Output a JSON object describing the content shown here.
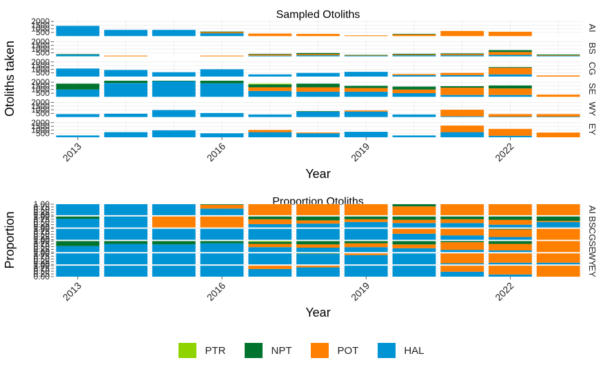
{
  "chart_data": [
    {
      "type": "bar",
      "stacked": true,
      "title": "Sampled Otoliths",
      "xlabel": "Year",
      "ylabel": "Otoliths taken",
      "x": [
        2013,
        2014,
        2015,
        2016,
        2017,
        2018,
        2019,
        2020,
        2021,
        2022,
        2023
      ],
      "x_ticks": [
        "2013",
        "2016",
        "2019",
        "2022"
      ],
      "y_ticks": [
        "500",
        "1000",
        "1500",
        "2000"
      ],
      "ylim": [
        0,
        2200
      ],
      "grid": true,
      "facets": [
        {
          "name": "AI",
          "series": [
            {
              "name": "HAL",
              "values": [
                1400,
                850,
                850,
                400,
                0,
                0,
                0,
                0,
                0,
                0,
                null
              ]
            },
            {
              "name": "POT",
              "values": [
                0,
                0,
                0,
                200,
                350,
                300,
                100,
                250,
                700,
                600,
                null
              ]
            },
            {
              "name": "NPT",
              "values": [
                0,
                0,
                0,
                20,
                0,
                0,
                0,
                50,
                0,
                0,
                null
              ]
            },
            {
              "name": "PTR",
              "values": [
                0,
                0,
                0,
                0,
                0,
                0,
                0,
                0,
                0,
                0,
                null
              ]
            }
          ]
        },
        {
          "name": "BS",
          "series": [
            {
              "name": "HAL",
              "values": [
                250,
                0,
                0,
                0,
                100,
                150,
                100,
                150,
                150,
                200,
                120
              ]
            },
            {
              "name": "POT",
              "values": [
                0,
                100,
                0,
                100,
                150,
                150,
                50,
                100,
                150,
                400,
                30
              ]
            },
            {
              "name": "NPT",
              "values": [
                50,
                0,
                0,
                0,
                80,
                150,
                50,
                100,
                100,
                250,
                100
              ]
            },
            {
              "name": "PTR",
              "values": [
                0,
                0,
                0,
                0,
                0,
                0,
                0,
                0,
                0,
                0,
                0
              ]
            }
          ]
        },
        {
          "name": "CG",
          "series": [
            {
              "name": "HAL",
              "values": [
                1100,
                900,
                600,
                1000,
                300,
                500,
                650,
                200,
                200,
                300,
                0
              ]
            },
            {
              "name": "POT",
              "values": [
                0,
                0,
                0,
                0,
                0,
                0,
                0,
                150,
                300,
                900,
                150
              ]
            },
            {
              "name": "NPT",
              "values": [
                0,
                0,
                0,
                0,
                0,
                0,
                0,
                0,
                0,
                100,
                0
              ]
            },
            {
              "name": "PTR",
              "values": [
                0,
                0,
                0,
                0,
                0,
                0,
                0,
                0,
                0,
                0,
                0
              ]
            }
          ]
        },
        {
          "name": "SE",
          "series": [
            {
              "name": "HAL",
              "values": [
                1000,
                1900,
                2150,
                1850,
                800,
                700,
                700,
                500,
                250,
                250,
                0
              ]
            },
            {
              "name": "POT",
              "values": [
                0,
                0,
                0,
                0,
                500,
                600,
                500,
                500,
                1000,
                900,
                300
              ]
            },
            {
              "name": "NPT",
              "values": [
                800,
                600,
                900,
                400,
                400,
                500,
                300,
                400,
                200,
                400,
                0
              ]
            },
            {
              "name": "PTR",
              "values": [
                0,
                0,
                0,
                0,
                100,
                0,
                0,
                0,
                0,
                0,
                0
              ]
            }
          ]
        },
        {
          "name": "WY",
          "series": [
            {
              "name": "HAL",
              "values": [
                400,
                450,
                950,
                550,
                350,
                750,
                750,
                350,
                100,
                50,
                50
              ]
            },
            {
              "name": "POT",
              "values": [
                0,
                0,
                0,
                0,
                0,
                0,
                150,
                0,
                900,
                350,
                350
              ]
            },
            {
              "name": "NPT",
              "values": [
                0,
                0,
                0,
                0,
                0,
                50,
                0,
                0,
                0,
                0,
                0
              ]
            },
            {
              "name": "PTR",
              "values": [
                0,
                0,
                0,
                0,
                0,
                0,
                0,
                0,
                0,
                0,
                0
              ]
            }
          ]
        },
        {
          "name": "EY",
          "series": [
            {
              "name": "HAL",
              "values": [
                250,
                700,
                950,
                550,
                700,
                550,
                750,
                250,
                700,
                200,
                0
              ]
            },
            {
              "name": "POT",
              "values": [
                0,
                0,
                0,
                0,
                300,
                100,
                0,
                0,
                900,
                950,
                650
              ]
            },
            {
              "name": "NPT",
              "values": [
                0,
                0,
                0,
                0,
                0,
                0,
                0,
                0,
                0,
                0,
                0
              ]
            },
            {
              "name": "PTR",
              "values": [
                0,
                0,
                0,
                0,
                0,
                0,
                0,
                0,
                0,
                0,
                0
              ]
            }
          ]
        }
      ]
    },
    {
      "type": "bar",
      "stacked": true,
      "title": "Proportion Otoliths",
      "xlabel": "Year",
      "ylabel": "Proportion",
      "x": [
        2013,
        2014,
        2015,
        2016,
        2017,
        2018,
        2019,
        2020,
        2021,
        2022,
        2023
      ],
      "x_ticks": [
        "2013",
        "2016",
        "2019",
        "2022"
      ],
      "y_ticks": [
        "0.00",
        "0.25",
        "0.50",
        "0.75",
        "1.00"
      ],
      "ylim": [
        0,
        1
      ],
      "grid": true,
      "facets": [
        {
          "name": "AI",
          "series": [
            {
              "name": "HAL",
              "values": [
                1,
                1,
                1,
                0.6,
                0,
                0,
                0,
                0,
                0,
                0,
                0
              ]
            },
            {
              "name": "POT",
              "values": [
                0,
                0,
                0,
                0.35,
                1,
                1,
                1,
                0.8,
                1,
                1,
                1
              ]
            },
            {
              "name": "NPT",
              "values": [
                0,
                0,
                0,
                0.05,
                0,
                0,
                0,
                0.2,
                0,
                0,
                0
              ]
            },
            {
              "name": "PTR",
              "values": [
                0,
                0,
                0,
                0,
                0,
                0,
                0,
                0,
                0,
                0,
                0
              ]
            }
          ]
        },
        {
          "name": "BS",
          "series": [
            {
              "name": "HAL",
              "values": [
                0.8,
                1,
                0,
                0,
                0.3,
                0.35,
                0.5,
                0.4,
                0.4,
                0.25,
                0.5
              ]
            },
            {
              "name": "POT",
              "values": [
                0,
                0,
                1,
                1,
                0.45,
                0.3,
                0.25,
                0.3,
                0.35,
                0.45,
                0.1
              ]
            },
            {
              "name": "NPT",
              "values": [
                0.2,
                0,
                0,
                0,
                0.25,
                0.35,
                0.25,
                0.3,
                0.25,
                0.3,
                0.4
              ]
            },
            {
              "name": "PTR",
              "values": [
                0,
                0,
                0,
                0,
                0,
                0,
                0,
                0,
                0,
                0,
                0
              ]
            }
          ]
        },
        {
          "name": "CG",
          "series": [
            {
              "name": "HAL",
              "values": [
                1,
                1,
                1,
                1,
                1,
                1,
                1,
                0.55,
                0.4,
                0.25,
                0
              ]
            },
            {
              "name": "POT",
              "values": [
                0,
                0,
                0,
                0,
                0,
                0,
                0,
                0.45,
                0.6,
                0.7,
                1
              ]
            },
            {
              "name": "NPT",
              "values": [
                0,
                0,
                0,
                0,
                0,
                0,
                0,
                0,
                0,
                0.05,
                0
              ]
            },
            {
              "name": "PTR",
              "values": [
                0,
                0,
                0,
                0,
                0,
                0,
                0,
                0,
                0,
                0,
                0
              ]
            }
          ]
        },
        {
          "name": "SE",
          "series": [
            {
              "name": "HAL",
              "values": [
                0.55,
                0.75,
                0.7,
                0.8,
                0.45,
                0.4,
                0.45,
                0.35,
                0.2,
                0.15,
                0
              ]
            },
            {
              "name": "POT",
              "values": [
                0,
                0,
                0,
                0,
                0.3,
                0.3,
                0.35,
                0.35,
                0.7,
                0.6,
                1
              ]
            },
            {
              "name": "NPT",
              "values": [
                0.45,
                0.25,
                0.3,
                0.2,
                0.2,
                0.3,
                0.2,
                0.3,
                0.1,
                0.25,
                0
              ]
            },
            {
              "name": "PTR",
              "values": [
                0,
                0,
                0,
                0,
                0.05,
                0,
                0,
                0,
                0,
                0,
                0
              ]
            }
          ]
        },
        {
          "name": "WY",
          "series": [
            {
              "name": "HAL",
              "values": [
                1,
                1,
                1,
                1,
                1,
                0.95,
                0.85,
                1,
                0.1,
                0.15,
                0.15
              ]
            },
            {
              "name": "POT",
              "values": [
                0,
                0,
                0,
                0,
                0,
                0,
                0.15,
                0,
                0.9,
                0.85,
                0.85
              ]
            },
            {
              "name": "NPT",
              "values": [
                0,
                0,
                0,
                0,
                0,
                0.05,
                0,
                0,
                0,
                0,
                0
              ]
            },
            {
              "name": "PTR",
              "values": [
                0,
                0,
                0,
                0,
                0,
                0,
                0,
                0,
                0,
                0,
                0
              ]
            }
          ]
        },
        {
          "name": "EY",
          "series": [
            {
              "name": "HAL",
              "values": [
                1,
                1,
                1,
                1,
                0.7,
                0.85,
                1,
                1,
                0.45,
                0.2,
                0
              ]
            },
            {
              "name": "POT",
              "values": [
                0,
                0,
                0,
                0,
                0.3,
                0.15,
                0,
                0,
                0.55,
                0.8,
                1
              ]
            },
            {
              "name": "NPT",
              "values": [
                0,
                0,
                0,
                0,
                0,
                0,
                0,
                0,
                0,
                0,
                0
              ]
            },
            {
              "name": "PTR",
              "values": [
                0,
                0,
                0,
                0,
                0,
                0,
                0,
                0,
                0,
                0,
                0
              ]
            }
          ]
        }
      ]
    }
  ],
  "legend": {
    "placement": "bottom",
    "items": [
      {
        "name": "PTR",
        "color": "#8fd400"
      },
      {
        "name": "NPT",
        "color": "#00742f"
      },
      {
        "name": "POT",
        "color": "#ff7f00"
      },
      {
        "name": "HAL",
        "color": "#0094d4"
      }
    ]
  },
  "colors": {
    "HAL": "#0094d4",
    "POT": "#ff7f00",
    "NPT": "#00742f",
    "PTR": "#8fd400"
  }
}
